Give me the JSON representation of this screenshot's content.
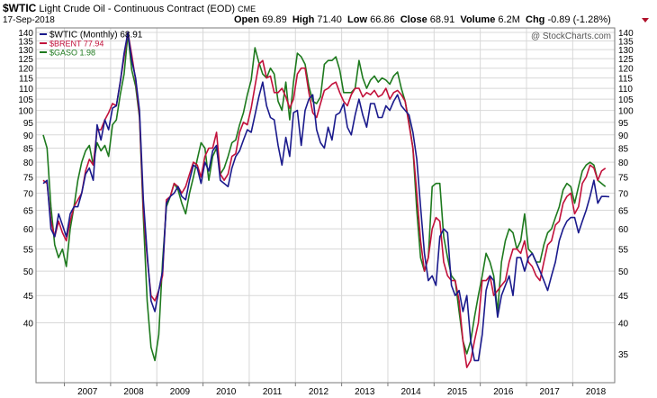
{
  "header": {
    "symbol": "$WTIC",
    "description": "Light Crude Oil - Continuous Contract (EOD)",
    "exchange": "CME",
    "date": "17-Sep-2018",
    "open_label": "Open",
    "open": "69.89",
    "high_label": "High",
    "high": "71.40",
    "low_label": "Low",
    "low": "66.86",
    "close_label": "Close",
    "close": "68.91",
    "volume_label": "Volume",
    "volume": "6.2M",
    "chg_label": "Chg",
    "chg": "-0.89 (-1.28%)",
    "chg_arrow": "down-arrow-icon"
  },
  "watermark": "@ StockCharts.com",
  "chart_data": {
    "type": "line",
    "y_scale": "log",
    "ylim": [
      32,
      140
    ],
    "y_ticks_left": [
      140,
      135,
      130,
      125,
      120,
      115,
      110,
      105,
      100,
      95,
      90,
      85,
      80,
      75,
      70,
      65,
      60,
      55,
      50,
      45,
      40
    ],
    "y_ticks_right": [
      140,
      135,
      130,
      125,
      120,
      115,
      110,
      105,
      100,
      95,
      90,
      85,
      80,
      75,
      70,
      65,
      60,
      55,
      50,
      45,
      40,
      35
    ],
    "x_ticks": [
      "2007",
      "2008",
      "2009",
      "2010",
      "2011",
      "2012",
      "2013",
      "2014",
      "2015",
      "2016",
      "2017",
      "2018"
    ],
    "x_start": "2006-07",
    "x_end": "2018-09",
    "grid": true,
    "legend_position": "top-left",
    "series": [
      {
        "name": "$WTIC (Monthly) 68.91",
        "color": "#1a1a8c",
        "values": [
          73,
          74,
          60,
          58,
          64,
          61,
          58,
          64,
          66,
          66,
          70,
          76,
          78,
          74,
          94,
          88,
          96,
          92,
          101,
          102,
          113,
          128,
          140,
          124,
          115,
          100,
          68,
          54,
          44,
          42,
          46,
          50,
          67,
          69,
          70,
          72,
          69,
          68,
          74,
          79,
          78,
          73,
          80,
          77,
          84,
          86,
          74,
          73,
          72,
          78,
          82,
          84,
          88,
          92,
          91,
          98,
          106,
          113,
          102,
          97,
          96,
          86,
          79,
          89,
          82,
          99,
          100,
          86,
          100,
          105,
          107,
          92,
          87,
          85,
          93,
          88,
          98,
          99,
          103,
          93,
          90,
          98,
          105,
          98,
          93,
          103,
          103,
          97,
          97,
          102,
          100,
          104,
          107,
          102,
          100,
          98,
          91,
          81,
          66,
          54,
          48,
          49,
          47,
          58,
          60,
          59,
          47,
          45,
          46,
          42,
          45,
          37,
          34,
          34,
          38,
          46,
          49,
          48,
          41,
          45,
          47,
          49,
          45,
          53,
          53,
          50,
          53,
          54,
          52,
          50,
          48,
          46,
          49,
          52,
          57,
          60,
          62,
          63,
          63,
          59,
          62,
          65,
          69,
          74,
          67,
          69,
          69,
          68.91
        ]
      },
      {
        "name": "$BRENT 77.94",
        "color": "#c2113b",
        "values": [
          74,
          73,
          62,
          58,
          62,
          59,
          57,
          62,
          66,
          68,
          70,
          77,
          81,
          79,
          92,
          92,
          96,
          99,
          103,
          102,
          113,
          126,
          140,
          127,
          114,
          98,
          65,
          53,
          45,
          44,
          46,
          49,
          68,
          69,
          73,
          72,
          70,
          72,
          76,
          80,
          79,
          75,
          82,
          85,
          85,
          91,
          76,
          74,
          76,
          82,
          83,
          91,
          95,
          94,
          101,
          111,
          122,
          124,
          115,
          116,
          108,
          108,
          110,
          106,
          101,
          105,
          117,
          120,
          120,
          108,
          99,
          97,
          103,
          109,
          110,
          112,
          113,
          108,
          104,
          102,
          107,
          110,
          110,
          106,
          108,
          107,
          109,
          106,
          107,
          110,
          105,
          108,
          109,
          107,
          104,
          94,
          85,
          70,
          57,
          50,
          53,
          60,
          63,
          62,
          52,
          49,
          48,
          48,
          44,
          37,
          33,
          34,
          37,
          40,
          48,
          48,
          49,
          45,
          46,
          47,
          48,
          52,
          55,
          55,
          54,
          57,
          52,
          51,
          49,
          48,
          52,
          56,
          57,
          61,
          62,
          67,
          69,
          70,
          64,
          66,
          73,
          75,
          79,
          78,
          74,
          77,
          77.94
        ]
      },
      {
        "name": "$GASO 1.98",
        "color": "#1e7a1e",
        "values": [
          90,
          85,
          66,
          56,
          53,
          55,
          51,
          60,
          66,
          74,
          80,
          84,
          86,
          79,
          87,
          84,
          86,
          82,
          94,
          96,
          107,
          117,
          139,
          119,
          111,
          97,
          63,
          44,
          36,
          34,
          38,
          52,
          66,
          69,
          73,
          71,
          67,
          64,
          70,
          75,
          81,
          87,
          85,
          74,
          82,
          85,
          76,
          78,
          82,
          87,
          88,
          94,
          99,
          107,
          114,
          131,
          123,
          117,
          115,
          120,
          117,
          104,
          100,
          113,
          96,
          113,
          128,
          126,
          122,
          111,
          104,
          103,
          106,
          122,
          124,
          124,
          126,
          119,
          108,
          108,
          108,
          110,
          124,
          115,
          110,
          114,
          116,
          113,
          115,
          114,
          112,
          116,
          118,
          110,
          104,
          95,
          85,
          65,
          53,
          50,
          53,
          72,
          73,
          73,
          58,
          53,
          49,
          48,
          42,
          37,
          35,
          37,
          41,
          45,
          49,
          54,
          52,
          49,
          42,
          52,
          57,
          60,
          59,
          55,
          57,
          64,
          55,
          54,
          52,
          52,
          56,
          59,
          60,
          63,
          66,
          71,
          73,
          72,
          67,
          72,
          77,
          79,
          80,
          79,
          74,
          73,
          72
        ]
      }
    ]
  }
}
